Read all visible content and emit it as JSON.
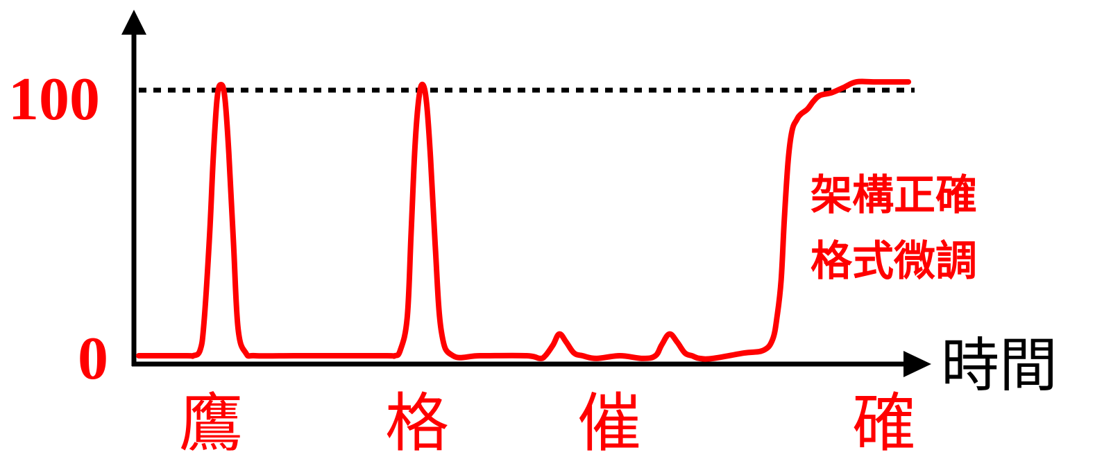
{
  "colors": {
    "curve": "#ff0000",
    "axis": "#000000",
    "labels": "#ff0000"
  },
  "chart_data": {
    "type": "line",
    "title": "",
    "xlabel": "時間",
    "ylabel": "",
    "ylim": [
      0,
      100
    ],
    "yticks": [
      "100",
      "0"
    ],
    "categories": [
      "鷹",
      "格",
      "催",
      "確"
    ],
    "reference_line": {
      "y": 100,
      "style": "dotted"
    },
    "annotation": [
      "架構正確",
      "格式微調"
    ],
    "series": [
      {
        "x": [
          0,
          6.2,
          7.0,
          7.9,
          8.4,
          9.1,
          9.6,
          10.1,
          10.6,
          11.1,
          11.6,
          12.2,
          12.8,
          13.8,
          15,
          20,
          25,
          32,
          33,
          33.7,
          34.6,
          35.1,
          35.6,
          36.1,
          36.6,
          37.1,
          37.6,
          38.2,
          39,
          40.5,
          44,
          50,
          51.7,
          52.4,
          53.4,
          54.2,
          55.1,
          56.1,
          57.2,
          59,
          62,
          65,
          66.6,
          67.4,
          68.4,
          69.4,
          70.4,
          71.3,
          72.3,
          74,
          78,
          80.5,
          81.7,
          82.3,
          82.8,
          83.2,
          83.7,
          84.2,
          84.8,
          85.3,
          86.2,
          87,
          87.8,
          89.3,
          90.9,
          92.5,
          94.9,
          99.2
        ],
        "y": [
          0,
          0,
          0,
          2,
          12,
          43,
          73,
          95,
          100,
          95,
          75,
          42,
          10,
          1,
          0,
          0,
          0,
          0,
          0,
          2,
          14,
          45,
          77,
          95,
          100,
          93,
          73,
          41,
          9,
          0,
          0,
          0,
          -1,
          0,
          4,
          8,
          5,
          1,
          0,
          -1,
          0,
          -1,
          0,
          4,
          8,
          5,
          1,
          0,
          -1,
          -1,
          1,
          2,
          6,
          15,
          28,
          50,
          72,
          83,
          87,
          89,
          91,
          94,
          96,
          97,
          99,
          101,
          101,
          101
        ]
      }
    ]
  }
}
